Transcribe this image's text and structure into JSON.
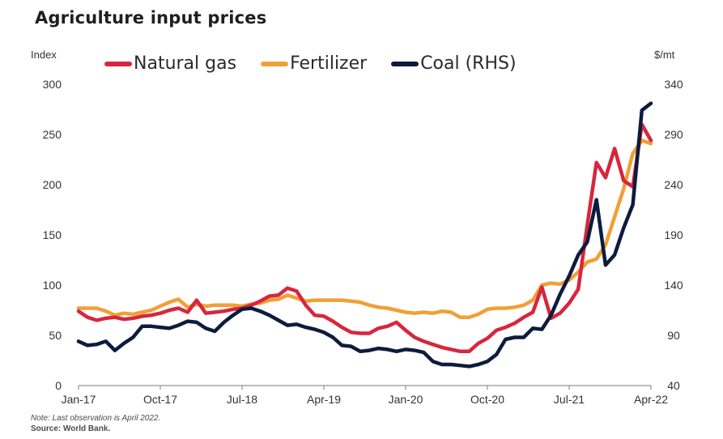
{
  "title": "Agriculture input prices",
  "left_unit": "Index",
  "right_unit": "$/mt",
  "note": "Note: Last observation is April 2022.",
  "source": "Source: World Bank.",
  "chart_data": {
    "type": "line",
    "title": "Agriculture input prices",
    "ylabel_left": "Index",
    "ylabel_right": "$/mt",
    "ylim_left": [
      0,
      300
    ],
    "ylim_right": [
      40,
      340
    ],
    "yticks_left": [
      "0",
      "50",
      "100",
      "150",
      "200",
      "250",
      "300"
    ],
    "yticks_right": [
      "40",
      "90",
      "140",
      "190",
      "240",
      "290",
      "340"
    ],
    "xtick_labels": [
      "Jan-17",
      "Oct-17",
      "Jul-18",
      "Apr-19",
      "Jan-20",
      "Oct-20",
      "Jul-21",
      "Apr-22"
    ],
    "grid": false,
    "legend_position": "top",
    "x": [
      "Jan-17",
      "Feb-17",
      "Mar-17",
      "Apr-17",
      "May-17",
      "Jun-17",
      "Jul-17",
      "Aug-17",
      "Sep-17",
      "Oct-17",
      "Nov-17",
      "Dec-17",
      "Jan-18",
      "Feb-18",
      "Mar-18",
      "Apr-18",
      "May-18",
      "Jun-18",
      "Jul-18",
      "Aug-18",
      "Sep-18",
      "Oct-18",
      "Nov-18",
      "Dec-18",
      "Jan-19",
      "Feb-19",
      "Mar-19",
      "Apr-19",
      "May-19",
      "Jun-19",
      "Jul-19",
      "Aug-19",
      "Sep-19",
      "Oct-19",
      "Nov-19",
      "Dec-19",
      "Jan-20",
      "Feb-20",
      "Mar-20",
      "Apr-20",
      "May-20",
      "Jun-20",
      "Jul-20",
      "Aug-20",
      "Sep-20",
      "Oct-20",
      "Nov-20",
      "Dec-20",
      "Jan-21",
      "Feb-21",
      "Mar-21",
      "Apr-21",
      "May-21",
      "Jun-21",
      "Jul-21",
      "Aug-21",
      "Sep-21",
      "Oct-21",
      "Nov-21",
      "Dec-21",
      "Jan-22",
      "Feb-22",
      "Mar-22",
      "Apr-22"
    ],
    "series": [
      {
        "name": "Natural gas",
        "color": "#d7263d",
        "axis": "left",
        "values": [
          74,
          68,
          65,
          67,
          68,
          66,
          67,
          69,
          70,
          72,
          75,
          77,
          73,
          85,
          72,
          73,
          74,
          76,
          77,
          80,
          84,
          89,
          90,
          97,
          94,
          80,
          70,
          69,
          64,
          58,
          53,
          52,
          52,
          57,
          59,
          63,
          55,
          48,
          44,
          41,
          38,
          36,
          34,
          34,
          42,
          47,
          55,
          58,
          62,
          68,
          73,
          98,
          67,
          72,
          82,
          96,
          160,
          222,
          207,
          236,
          204,
          198,
          260,
          244
        ]
      },
      {
        "name": "Fertilizer",
        "color": "#f0a035",
        "axis": "left",
        "values": [
          77,
          77,
          77,
          74,
          70,
          72,
          71,
          73,
          75,
          79,
          83,
          86,
          78,
          81,
          79,
          80,
          80,
          80,
          79,
          81,
          82,
          85,
          86,
          90,
          87,
          84,
          85,
          85,
          85,
          85,
          84,
          83,
          80,
          78,
          77,
          75,
          73,
          72,
          73,
          72,
          74,
          73,
          68,
          68,
          71,
          76,
          77,
          77,
          78,
          80,
          85,
          100,
          102,
          101,
          105,
          113,
          123,
          126,
          140,
          168,
          196,
          231,
          244,
          241
        ]
      },
      {
        "name": "Coal (RHS)",
        "color": "#0d1b3e",
        "axis": "right",
        "values": [
          84,
          80,
          81,
          84,
          75,
          82,
          88,
          99,
          99,
          98,
          97,
          100,
          104,
          103,
          97,
          94,
          103,
          110,
          116,
          117,
          114,
          110,
          105,
          100,
          101,
          98,
          96,
          93,
          88,
          80,
          79,
          74,
          75,
          77,
          76,
          74,
          76,
          75,
          73,
          64,
          61,
          61,
          60,
          59,
          61,
          64,
          71,
          86,
          88,
          88,
          97,
          96,
          110,
          131,
          149,
          170,
          183,
          225,
          160,
          170,
          197,
          220,
          314,
          321
        ]
      }
    ]
  }
}
